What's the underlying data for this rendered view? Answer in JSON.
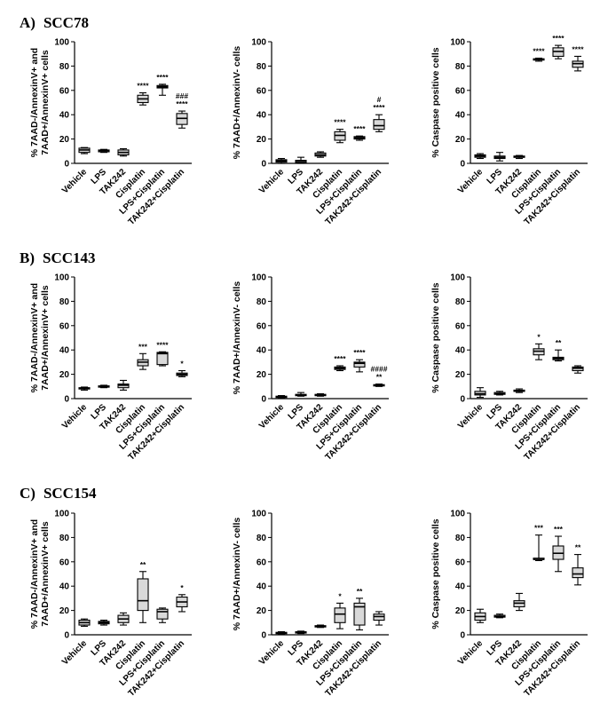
{
  "categories": [
    "Vehicle",
    "LPS",
    "TAK242",
    "Cisplatin",
    "LPS+Cisplatin",
    "TAK242+Cisplatin"
  ],
  "sections": [
    {
      "label": "A)",
      "name": "SCC78"
    },
    {
      "label": "B)",
      "name": "SCC143"
    },
    {
      "label": "C)",
      "name": "SCC154"
    }
  ],
  "chart_data": [
    {
      "type": "box",
      "section": "A) SCC78",
      "ylabel_lines": [
        "% 7AAD-/AnnexinV+ and",
        "7AAD+/AnnexinV+ cells"
      ],
      "ylim": [
        0,
        100
      ],
      "yticks": [
        0,
        20,
        40,
        60,
        80,
        100
      ],
      "boxes": [
        {
          "category": "Vehicle",
          "min": 8,
          "q1": 9,
          "median": 11,
          "q3": 12.5,
          "max": 13
        },
        {
          "category": "LPS",
          "min": 9,
          "q1": 9.5,
          "median": 10.5,
          "q3": 11,
          "max": 11.5
        },
        {
          "category": "TAK242",
          "min": 6,
          "q1": 7,
          "median": 9,
          "q3": 11,
          "max": 12
        },
        {
          "category": "Cisplatin",
          "min": 48,
          "q1": 50,
          "median": 53,
          "q3": 56,
          "max": 58
        },
        {
          "category": "LPS+Cisplatin",
          "min": 56,
          "q1": 62,
          "median": 63,
          "q3": 64,
          "max": 65
        },
        {
          "category": "TAK242+Cisplatin",
          "min": 29,
          "q1": 32,
          "median": 37,
          "q3": 41,
          "max": 43
        }
      ],
      "annotations": [
        {
          "category": "Cisplatin",
          "lines": [
            "****"
          ]
        },
        {
          "category": "LPS+Cisplatin",
          "lines": [
            "****"
          ]
        },
        {
          "category": "TAK242+Cisplatin",
          "lines": [
            "###",
            "****"
          ]
        }
      ]
    },
    {
      "type": "box",
      "section": "A) SCC78",
      "ylabel_lines": [
        "% 7AAD+/AnnexinV- cells"
      ],
      "ylim": [
        0,
        100
      ],
      "yticks": [
        0,
        20,
        40,
        60,
        80,
        100
      ],
      "boxes": [
        {
          "category": "Vehicle",
          "min": 0,
          "q1": 1,
          "median": 2,
          "q3": 3,
          "max": 4
        },
        {
          "category": "LPS",
          "min": 0,
          "q1": 0.5,
          "median": 1.5,
          "q3": 2.5,
          "max": 5
        },
        {
          "category": "TAK242",
          "min": 5,
          "q1": 6,
          "median": 7,
          "q3": 8.5,
          "max": 9.5
        },
        {
          "category": "Cisplatin",
          "min": 17,
          "q1": 19,
          "median": 23,
          "q3": 26,
          "max": 28
        },
        {
          "category": "LPS+Cisplatin",
          "min": 19,
          "q1": 20,
          "median": 21,
          "q3": 22,
          "max": 22.5
        },
        {
          "category": "TAK242+Cisplatin",
          "min": 26,
          "q1": 28,
          "median": 31,
          "q3": 36,
          "max": 40
        }
      ],
      "annotations": [
        {
          "category": "Cisplatin",
          "lines": [
            "****"
          ]
        },
        {
          "category": "LPS+Cisplatin",
          "lines": [
            "****"
          ]
        },
        {
          "category": "TAK242+Cisplatin",
          "lines": [
            "#",
            "****"
          ]
        }
      ]
    },
    {
      "type": "box",
      "section": "A) SCC78",
      "ylabel_lines": [
        "% Caspase positive cells"
      ],
      "ylim": [
        0,
        100
      ],
      "yticks": [
        0,
        20,
        40,
        60,
        80,
        100
      ],
      "boxes": [
        {
          "category": "Vehicle",
          "min": 4,
          "q1": 5,
          "median": 6,
          "q3": 7,
          "max": 8
        },
        {
          "category": "LPS",
          "min": 2,
          "q1": 4,
          "median": 5,
          "q3": 6,
          "max": 9
        },
        {
          "category": "TAK242",
          "min": 4,
          "q1": 5,
          "median": 5.5,
          "q3": 6,
          "max": 6.5
        },
        {
          "category": "Cisplatin",
          "min": 84,
          "q1": 85,
          "median": 85.5,
          "q3": 86,
          "max": 86.5
        },
        {
          "category": "LPS+Cisplatin",
          "min": 86,
          "q1": 88,
          "median": 92,
          "q3": 95,
          "max": 97
        },
        {
          "category": "TAK242+Cisplatin",
          "min": 76,
          "q1": 79,
          "median": 82,
          "q3": 84,
          "max": 88
        }
      ],
      "annotations": [
        {
          "category": "Cisplatin",
          "lines": [
            "****"
          ]
        },
        {
          "category": "LPS+Cisplatin",
          "lines": [
            "****"
          ]
        },
        {
          "category": "TAK242+Cisplatin",
          "lines": [
            "****"
          ]
        }
      ]
    },
    {
      "type": "box",
      "section": "B) SCC143",
      "ylabel_lines": [
        "% 7AAD-/AnnexinV+ and",
        "7AAD+/AnnexinV+ cells"
      ],
      "ylim": [
        0,
        100
      ],
      "yticks": [
        0,
        20,
        40,
        60,
        80,
        100
      ],
      "boxes": [
        {
          "category": "Vehicle",
          "min": 7,
          "q1": 8,
          "median": 8.5,
          "q3": 9,
          "max": 9.5
        },
        {
          "category": "LPS",
          "min": 9,
          "q1": 9.5,
          "median": 10,
          "q3": 10.5,
          "max": 11
        },
        {
          "category": "TAK242",
          "min": 7,
          "q1": 9,
          "median": 11,
          "q3": 12,
          "max": 15
        },
        {
          "category": "Cisplatin",
          "min": 24,
          "q1": 27,
          "median": 30,
          "q3": 32,
          "max": 37
        },
        {
          "category": "LPS+Cisplatin",
          "min": 27,
          "q1": 28,
          "median": 37,
          "q3": 38,
          "max": 38.5
        },
        {
          "category": "TAK242+Cisplatin",
          "min": 18,
          "q1": 19,
          "median": 20,
          "q3": 21,
          "max": 23
        }
      ],
      "annotations": [
        {
          "category": "Cisplatin",
          "lines": [
            "***"
          ]
        },
        {
          "category": "LPS+Cisplatin",
          "lines": [
            "****"
          ]
        },
        {
          "category": "TAK242+Cisplatin",
          "lines": [
            "*"
          ]
        }
      ]
    },
    {
      "type": "box",
      "section": "B) SCC143",
      "ylabel_lines": [
        "% 7AAD+/AnnexinV- cells"
      ],
      "ylim": [
        0,
        100
      ],
      "yticks": [
        0,
        20,
        40,
        60,
        80,
        100
      ],
      "boxes": [
        {
          "category": "Vehicle",
          "min": 0.5,
          "q1": 1,
          "median": 1.5,
          "q3": 2,
          "max": 2.5
        },
        {
          "category": "LPS",
          "min": 2,
          "q1": 2.5,
          "median": 3,
          "q3": 3.5,
          "max": 5
        },
        {
          "category": "TAK242",
          "min": 2,
          "q1": 2.5,
          "median": 3,
          "q3": 3.5,
          "max": 4
        },
        {
          "category": "Cisplatin",
          "min": 23,
          "q1": 24,
          "median": 25,
          "q3": 26,
          "max": 27
        },
        {
          "category": "LPS+Cisplatin",
          "min": 22,
          "q1": 26,
          "median": 29,
          "q3": 30,
          "max": 32
        },
        {
          "category": "TAK242+Cisplatin",
          "min": 10,
          "q1": 10.5,
          "median": 11,
          "q3": 11.5,
          "max": 12
        }
      ],
      "annotations": [
        {
          "category": "Cisplatin",
          "lines": [
            "****"
          ]
        },
        {
          "category": "LPS+Cisplatin",
          "lines": [
            "****"
          ]
        },
        {
          "category": "TAK242+Cisplatin",
          "lines": [
            "####",
            "**"
          ]
        }
      ]
    },
    {
      "type": "box",
      "section": "B) SCC143",
      "ylabel_lines": [
        "% Caspase positive cells"
      ],
      "ylim": [
        0,
        100
      ],
      "yticks": [
        0,
        20,
        40,
        60,
        80,
        100
      ],
      "boxes": [
        {
          "category": "Vehicle",
          "min": 1,
          "q1": 3,
          "median": 4,
          "q3": 6,
          "max": 9
        },
        {
          "category": "LPS",
          "min": 3,
          "q1": 3.5,
          "median": 4,
          "q3": 5,
          "max": 6
        },
        {
          "category": "TAK242",
          "min": 5,
          "q1": 6,
          "median": 6.5,
          "q3": 7,
          "max": 8
        },
        {
          "category": "Cisplatin",
          "min": 32,
          "q1": 36,
          "median": 39,
          "q3": 41,
          "max": 45
        },
        {
          "category": "LPS+Cisplatin",
          "min": 31,
          "q1": 32,
          "median": 33,
          "q3": 34,
          "max": 40
        },
        {
          "category": "TAK242+Cisplatin",
          "min": 21,
          "q1": 23,
          "median": 25,
          "q3": 26,
          "max": 27
        }
      ],
      "annotations": [
        {
          "category": "Cisplatin",
          "lines": [
            "*"
          ]
        },
        {
          "category": "LPS+Cisplatin",
          "lines": [
            "**"
          ]
        }
      ]
    },
    {
      "type": "box",
      "section": "C) SCC154",
      "ylabel_lines": [
        "% 7AAD-/AnnexinV+ and",
        "7AAD+/AnnexinV+ cells"
      ],
      "ylim": [
        0,
        100
      ],
      "yticks": [
        0,
        20,
        40,
        60,
        80,
        100
      ],
      "boxes": [
        {
          "category": "Vehicle",
          "min": 7,
          "q1": 8,
          "median": 10,
          "q3": 12,
          "max": 13
        },
        {
          "category": "LPS",
          "min": 8,
          "q1": 9,
          "median": 10,
          "q3": 11,
          "max": 12
        },
        {
          "category": "TAK242",
          "min": 8,
          "q1": 10,
          "median": 13,
          "q3": 16,
          "max": 18
        },
        {
          "category": "Cisplatin",
          "min": 10,
          "q1": 20,
          "median": 28,
          "q3": 46,
          "max": 52
        },
        {
          "category": "LPS+Cisplatin",
          "min": 10,
          "q1": 13,
          "median": 19,
          "q3": 21,
          "max": 22
        },
        {
          "category": "TAK242+Cisplatin",
          "min": 19,
          "q1": 23,
          "median": 27,
          "q3": 31,
          "max": 33
        }
      ],
      "annotations": [
        {
          "category": "Cisplatin",
          "lines": [
            "**"
          ]
        },
        {
          "category": "TAK242+Cisplatin",
          "lines": [
            "*"
          ]
        }
      ]
    },
    {
      "type": "box",
      "section": "C) SCC154",
      "ylabel_lines": [
        "% 7AAD+/AnnexinV- cells"
      ],
      "ylim": [
        0,
        100
      ],
      "yticks": [
        0,
        20,
        40,
        60,
        80,
        100
      ],
      "boxes": [
        {
          "category": "Vehicle",
          "min": 0.5,
          "q1": 1,
          "median": 1.5,
          "q3": 2,
          "max": 2.5
        },
        {
          "category": "LPS",
          "min": 1,
          "q1": 1.5,
          "median": 2,
          "q3": 2.5,
          "max": 3
        },
        {
          "category": "TAK242",
          "min": 6,
          "q1": 6.5,
          "median": 7,
          "q3": 7.5,
          "max": 8
        },
        {
          "category": "Cisplatin",
          "min": 5,
          "q1": 10,
          "median": 17,
          "q3": 22,
          "max": 26
        },
        {
          "category": "LPS+Cisplatin",
          "min": 4,
          "q1": 8,
          "median": 23,
          "q3": 26,
          "max": 30
        },
        {
          "category": "TAK242+Cisplatin",
          "min": 8,
          "q1": 12,
          "median": 15,
          "q3": 17,
          "max": 19
        }
      ],
      "annotations": [
        {
          "category": "Cisplatin",
          "lines": [
            "*"
          ]
        },
        {
          "category": "LPS+Cisplatin",
          "lines": [
            "**"
          ]
        }
      ]
    },
    {
      "type": "box",
      "section": "C) SCC154",
      "ylabel_lines": [
        "% Caspase positive cells"
      ],
      "ylim": [
        0,
        100
      ],
      "yticks": [
        0,
        20,
        40,
        60,
        80,
        100
      ],
      "boxes": [
        {
          "category": "Vehicle",
          "min": 10,
          "q1": 12,
          "median": 15,
          "q3": 18,
          "max": 21
        },
        {
          "category": "LPS",
          "min": 14,
          "q1": 14.5,
          "median": 15,
          "q3": 16,
          "max": 17
        },
        {
          "category": "TAK242",
          "min": 20,
          "q1": 23,
          "median": 26,
          "q3": 28,
          "max": 34
        },
        {
          "category": "Cisplatin",
          "min": 61,
          "q1": 62,
          "median": 62,
          "q3": 63,
          "max": 82
        },
        {
          "category": "LPS+Cisplatin",
          "min": 52,
          "q1": 62,
          "median": 67,
          "q3": 73,
          "max": 81
        },
        {
          "category": "TAK242+Cisplatin",
          "min": 41,
          "q1": 47,
          "median": 50,
          "q3": 55,
          "max": 66
        }
      ],
      "annotations": [
        {
          "category": "Cisplatin",
          "lines": [
            "***"
          ]
        },
        {
          "category": "LPS+Cisplatin",
          "lines": [
            "***"
          ]
        },
        {
          "category": "TAK242+Cisplatin",
          "lines": [
            "**"
          ]
        }
      ]
    }
  ]
}
